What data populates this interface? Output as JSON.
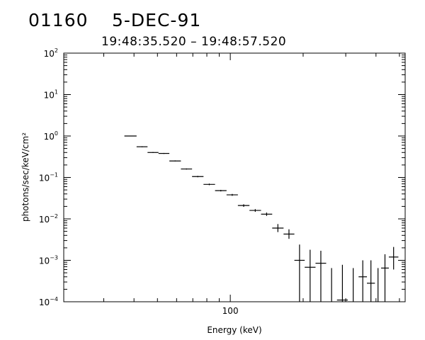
{
  "header": {
    "burst_id": "01160",
    "date": "5-DEC-91",
    "time_range": "19:48:35.520 – 19:48:57.520"
  },
  "chart_data": {
    "type": "scatter",
    "title": "",
    "xlabel": "Energy (keV)",
    "ylabel": "photons/sec/keV/cm²",
    "xscale": "log",
    "yscale": "log",
    "xlim": [
      20.5,
      528
    ],
    "ylim": [
      0.0001,
      100
    ],
    "x_tick_labels": [
      {
        "value": 100,
        "label": "100"
      }
    ],
    "y_tick_labels": [
      {
        "value": 0.0001,
        "base": "10",
        "exp": "−4"
      },
      {
        "value": 0.001,
        "base": "10",
        "exp": "−3"
      },
      {
        "value": 0.01,
        "base": "10",
        "exp": "−2"
      },
      {
        "value": 0.1,
        "base": "10",
        "exp": "−1"
      },
      {
        "value": 1,
        "base": "10",
        "exp": "0"
      },
      {
        "value": 10,
        "base": "10",
        "exp": "1"
      },
      {
        "value": 100,
        "base": "10",
        "exp": "2"
      }
    ],
    "grid": false,
    "series": [
      {
        "points": [
          {
            "x_lo": 36.5,
            "x_hi": 41.0,
            "y": 1.0,
            "y_lo": 0.98,
            "y_hi": 1.02
          },
          {
            "x_lo": 41.0,
            "x_hi": 45.5,
            "y": 0.55,
            "y_lo": 0.535,
            "y_hi": 0.565
          },
          {
            "x_lo": 45.5,
            "x_hi": 50.5,
            "y": 0.4,
            "y_lo": 0.39,
            "y_hi": 0.41
          },
          {
            "x_lo": 50.5,
            "x_hi": 56.0,
            "y": 0.38,
            "y_lo": 0.37,
            "y_hi": 0.39
          },
          {
            "x_lo": 56.0,
            "x_hi": 62.5,
            "y": 0.25,
            "y_lo": 0.243,
            "y_hi": 0.257
          },
          {
            "x_lo": 62.5,
            "x_hi": 69.5,
            "y": 0.16,
            "y_lo": 0.155,
            "y_hi": 0.165
          },
          {
            "x_lo": 69.5,
            "x_hi": 77.5,
            "y": 0.105,
            "y_lo": 0.101,
            "y_hi": 0.109
          },
          {
            "x_lo": 77.5,
            "x_hi": 86.5,
            "y": 0.068,
            "y_lo": 0.065,
            "y_hi": 0.071
          },
          {
            "x_lo": 86.5,
            "x_hi": 96.5,
            "y": 0.048,
            "y_lo": 0.046,
            "y_hi": 0.05
          },
          {
            "x_lo": 96.5,
            "x_hi": 107.5,
            "y": 0.038,
            "y_lo": 0.036,
            "y_hi": 0.04
          },
          {
            "x_lo": 107.5,
            "x_hi": 120.0,
            "y": 0.021,
            "y_lo": 0.0195,
            "y_hi": 0.0225
          },
          {
            "x_lo": 120.0,
            "x_hi": 134.0,
            "y": 0.016,
            "y_lo": 0.0148,
            "y_hi": 0.0172
          },
          {
            "x_lo": 134.0,
            "x_hi": 149.0,
            "y": 0.013,
            "y_lo": 0.0118,
            "y_hi": 0.0142
          },
          {
            "x_lo": 149.0,
            "x_hi": 166.0,
            "y": 0.006,
            "y_lo": 0.0048,
            "y_hi": 0.0075
          },
          {
            "x_lo": 166.0,
            "x_hi": 184.0,
            "y": 0.0043,
            "y_lo": 0.0033,
            "y_hi": 0.0056
          },
          {
            "x_lo": 184.0,
            "x_hi": 203.0,
            "y": 0.001,
            "y_lo": 0.0001,
            "y_hi": 0.0024
          },
          {
            "x_lo": 203.0,
            "x_hi": 225.0,
            "y": 0.00068,
            "y_lo": 0.0001,
            "y_hi": 0.0018
          },
          {
            "x_lo": 225.0,
            "x_hi": 249.0,
            "y": 0.00085,
            "y_lo": 0.0001,
            "y_hi": 0.0017
          },
          {
            "x_lo": 249.0,
            "x_hi": 276.0,
            "y": null,
            "y_lo": 0.0001,
            "y_hi": 0.00065
          },
          {
            "x_lo": 276.0,
            "x_hi": 306.0,
            "y": 0.00011,
            "y_lo": 0.0001,
            "y_hi": 0.00078
          },
          {
            "x_lo": 306.0,
            "x_hi": 339.0,
            "y": null,
            "y_lo": 0.0001,
            "y_hi": 0.00065
          },
          {
            "x_lo": 339.0,
            "x_hi": 367.0,
            "y": 0.0004,
            "y_lo": 0.0001,
            "y_hi": 0.001
          },
          {
            "x_lo": 367.0,
            "x_hi": 396.0,
            "y": 0.00028,
            "y_lo": 0.0001,
            "y_hi": 0.001
          },
          {
            "x_lo": 396.0,
            "x_hi": 420.0,
            "y": null,
            "y_lo": 0.0001,
            "y_hi": 0.00065
          },
          {
            "x_lo": 420.0,
            "x_hi": 452.0,
            "y": 0.00065,
            "y_lo": 0.0001,
            "y_hi": 0.0014
          },
          {
            "x_lo": 452.0,
            "x_hi": 495.0,
            "y": 0.0012,
            "y_lo": 0.0006,
            "y_hi": 0.0021
          }
        ]
      }
    ]
  }
}
